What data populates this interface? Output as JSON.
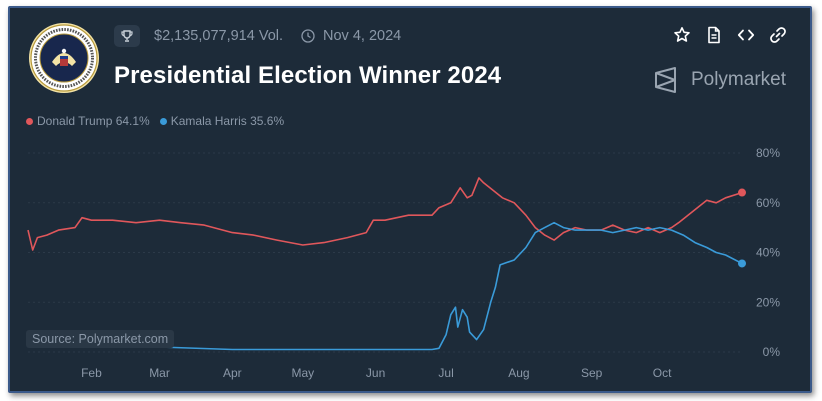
{
  "header": {
    "volume": "$2,135,077,914 Vol.",
    "date": "Nov 4, 2024",
    "title": "Presidential Election Winner 2024",
    "brand": "Polymarket",
    "seal_icon": "presidential-seal-icon",
    "toolbar_icons": [
      "star-icon",
      "document-icon",
      "code-icon",
      "link-icon"
    ]
  },
  "legend": [
    {
      "label": "Donald Trump 64.1%",
      "color": "#e0575b"
    },
    {
      "label": "Kamala Harris 35.6%",
      "color": "#3a9bd9"
    }
  ],
  "source": "Source: Polymarket.com",
  "chart_data": {
    "type": "line",
    "x_tick_labels": [
      "Feb",
      "Mar",
      "Apr",
      "May",
      "Jun",
      "Jul",
      "Aug",
      "Sep",
      "Oct"
    ],
    "x_ticks": [
      "2024-02-01",
      "2024-03-01",
      "2024-04-01",
      "2024-05-01",
      "2024-06-01",
      "2024-07-01",
      "2024-08-01",
      "2024-09-01",
      "2024-10-01"
    ],
    "y_tick_labels": [
      "0%",
      "20%",
      "40%",
      "60%",
      "80%"
    ],
    "ylim": [
      0,
      80
    ],
    "xlim": [
      "2024-01-05",
      "2024-11-04"
    ],
    "y_axis_side": "right",
    "series": [
      {
        "name": "Donald Trump",
        "color": "#e0575b",
        "points": [
          [
            "2024-01-05",
            49
          ],
          [
            "2024-01-07",
            41
          ],
          [
            "2024-01-09",
            46
          ],
          [
            "2024-01-13",
            47
          ],
          [
            "2024-01-18",
            49
          ],
          [
            "2024-01-25",
            50
          ],
          [
            "2024-01-28",
            54
          ],
          [
            "2024-02-01",
            53
          ],
          [
            "2024-02-10",
            53
          ],
          [
            "2024-02-20",
            52
          ],
          [
            "2024-03-01",
            53
          ],
          [
            "2024-03-10",
            52
          ],
          [
            "2024-03-20",
            51
          ],
          [
            "2024-04-01",
            48
          ],
          [
            "2024-04-10",
            47
          ],
          [
            "2024-04-20",
            45
          ],
          [
            "2024-05-01",
            43
          ],
          [
            "2024-05-10",
            44
          ],
          [
            "2024-05-20",
            46
          ],
          [
            "2024-05-28",
            48
          ],
          [
            "2024-05-31",
            53
          ],
          [
            "2024-06-05",
            53
          ],
          [
            "2024-06-15",
            55
          ],
          [
            "2024-06-25",
            55
          ],
          [
            "2024-06-28",
            58
          ],
          [
            "2024-07-03",
            60
          ],
          [
            "2024-07-07",
            66
          ],
          [
            "2024-07-10",
            62
          ],
          [
            "2024-07-12",
            63
          ],
          [
            "2024-07-15",
            70
          ],
          [
            "2024-07-17",
            68
          ],
          [
            "2024-07-21",
            65
          ],
          [
            "2024-07-25",
            62
          ],
          [
            "2024-07-30",
            60
          ],
          [
            "2024-08-04",
            55
          ],
          [
            "2024-08-08",
            50
          ],
          [
            "2024-08-12",
            47
          ],
          [
            "2024-08-16",
            45
          ],
          [
            "2024-08-20",
            48
          ],
          [
            "2024-08-25",
            50
          ],
          [
            "2024-08-30",
            49
          ],
          [
            "2024-09-05",
            49
          ],
          [
            "2024-09-10",
            51
          ],
          [
            "2024-09-15",
            49
          ],
          [
            "2024-09-20",
            48
          ],
          [
            "2024-09-25",
            50
          ],
          [
            "2024-09-30",
            48
          ],
          [
            "2024-10-05",
            50
          ],
          [
            "2024-10-08",
            52
          ],
          [
            "2024-10-12",
            55
          ],
          [
            "2024-10-16",
            58
          ],
          [
            "2024-10-20",
            61
          ],
          [
            "2024-10-24",
            60
          ],
          [
            "2024-10-28",
            62
          ],
          [
            "2024-11-04",
            64.1
          ]
        ]
      },
      {
        "name": "Kamala Harris",
        "color": "#3a9bd9",
        "points": [
          [
            "2024-01-05",
            3
          ],
          [
            "2024-01-10",
            3
          ],
          [
            "2024-01-20",
            2
          ],
          [
            "2024-02-01",
            2
          ],
          [
            "2024-03-01",
            2
          ],
          [
            "2024-04-01",
            1
          ],
          [
            "2024-05-01",
            1
          ],
          [
            "2024-06-01",
            1
          ],
          [
            "2024-06-25",
            1
          ],
          [
            "2024-06-28",
            1.5
          ],
          [
            "2024-07-01",
            7
          ],
          [
            "2024-07-03",
            15
          ],
          [
            "2024-07-05",
            18
          ],
          [
            "2024-07-06",
            10
          ],
          [
            "2024-07-08",
            17
          ],
          [
            "2024-07-10",
            14
          ],
          [
            "2024-07-11",
            8
          ],
          [
            "2024-07-14",
            5
          ],
          [
            "2024-07-17",
            9
          ],
          [
            "2024-07-20",
            20
          ],
          [
            "2024-07-22",
            26
          ],
          [
            "2024-07-24",
            35
          ],
          [
            "2024-07-27",
            36
          ],
          [
            "2024-07-30",
            37
          ],
          [
            "2024-08-04",
            42
          ],
          [
            "2024-08-08",
            48
          ],
          [
            "2024-08-12",
            50
          ],
          [
            "2024-08-16",
            52
          ],
          [
            "2024-08-20",
            50
          ],
          [
            "2024-08-25",
            49
          ],
          [
            "2024-08-30",
            49
          ],
          [
            "2024-09-05",
            49
          ],
          [
            "2024-09-10",
            48
          ],
          [
            "2024-09-15",
            49
          ],
          [
            "2024-09-20",
            50
          ],
          [
            "2024-09-25",
            49
          ],
          [
            "2024-09-30",
            50
          ],
          [
            "2024-10-05",
            49
          ],
          [
            "2024-10-10",
            47
          ],
          [
            "2024-10-15",
            44
          ],
          [
            "2024-10-20",
            42
          ],
          [
            "2024-10-24",
            40
          ],
          [
            "2024-10-28",
            39
          ],
          [
            "2024-11-04",
            35.6
          ]
        ]
      }
    ]
  }
}
